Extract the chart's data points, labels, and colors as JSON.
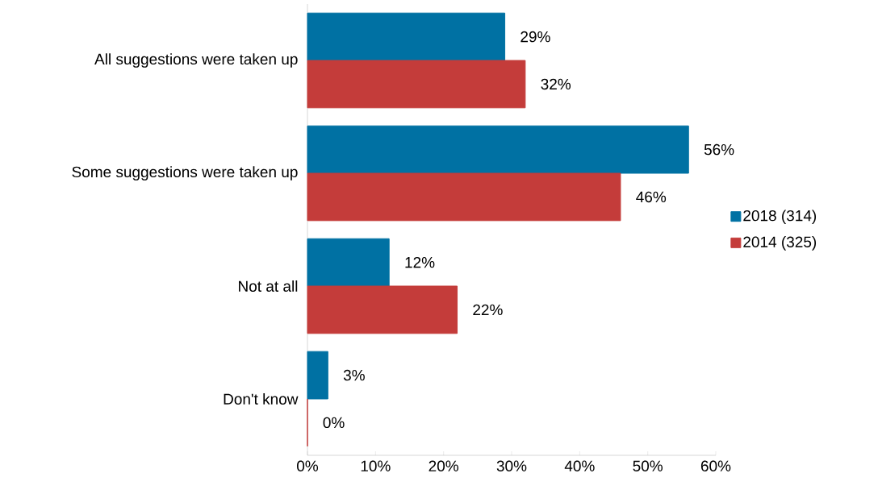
{
  "chart_data": {
    "type": "bar",
    "orientation": "horizontal",
    "categories": [
      "All suggestions were taken up",
      "Some suggestions were taken up",
      "Not at all",
      "Don't know"
    ],
    "series": [
      {
        "name": "2018 (314)",
        "color": "#0071a3",
        "values": [
          29,
          56,
          12,
          3
        ],
        "value_labels": [
          "29%",
          "56%",
          "12%",
          "3%"
        ]
      },
      {
        "name": "2014 (325)",
        "color": "#c43c3a",
        "values": [
          32,
          46,
          22,
          0
        ],
        "value_labels": [
          "32%",
          "46%",
          "22%",
          "0%"
        ]
      }
    ],
    "xlim": [
      0,
      60
    ],
    "xticks": [
      {
        "value": 0,
        "label": "0%"
      },
      {
        "value": 10,
        "label": "10%"
      },
      {
        "value": 20,
        "label": "20%"
      },
      {
        "value": 30,
        "label": "30%"
      },
      {
        "value": 40,
        "label": "40%"
      },
      {
        "value": 50,
        "label": "50%"
      },
      {
        "value": 60,
        "label": "60%"
      }
    ],
    "grid": false,
    "legend": "right"
  }
}
